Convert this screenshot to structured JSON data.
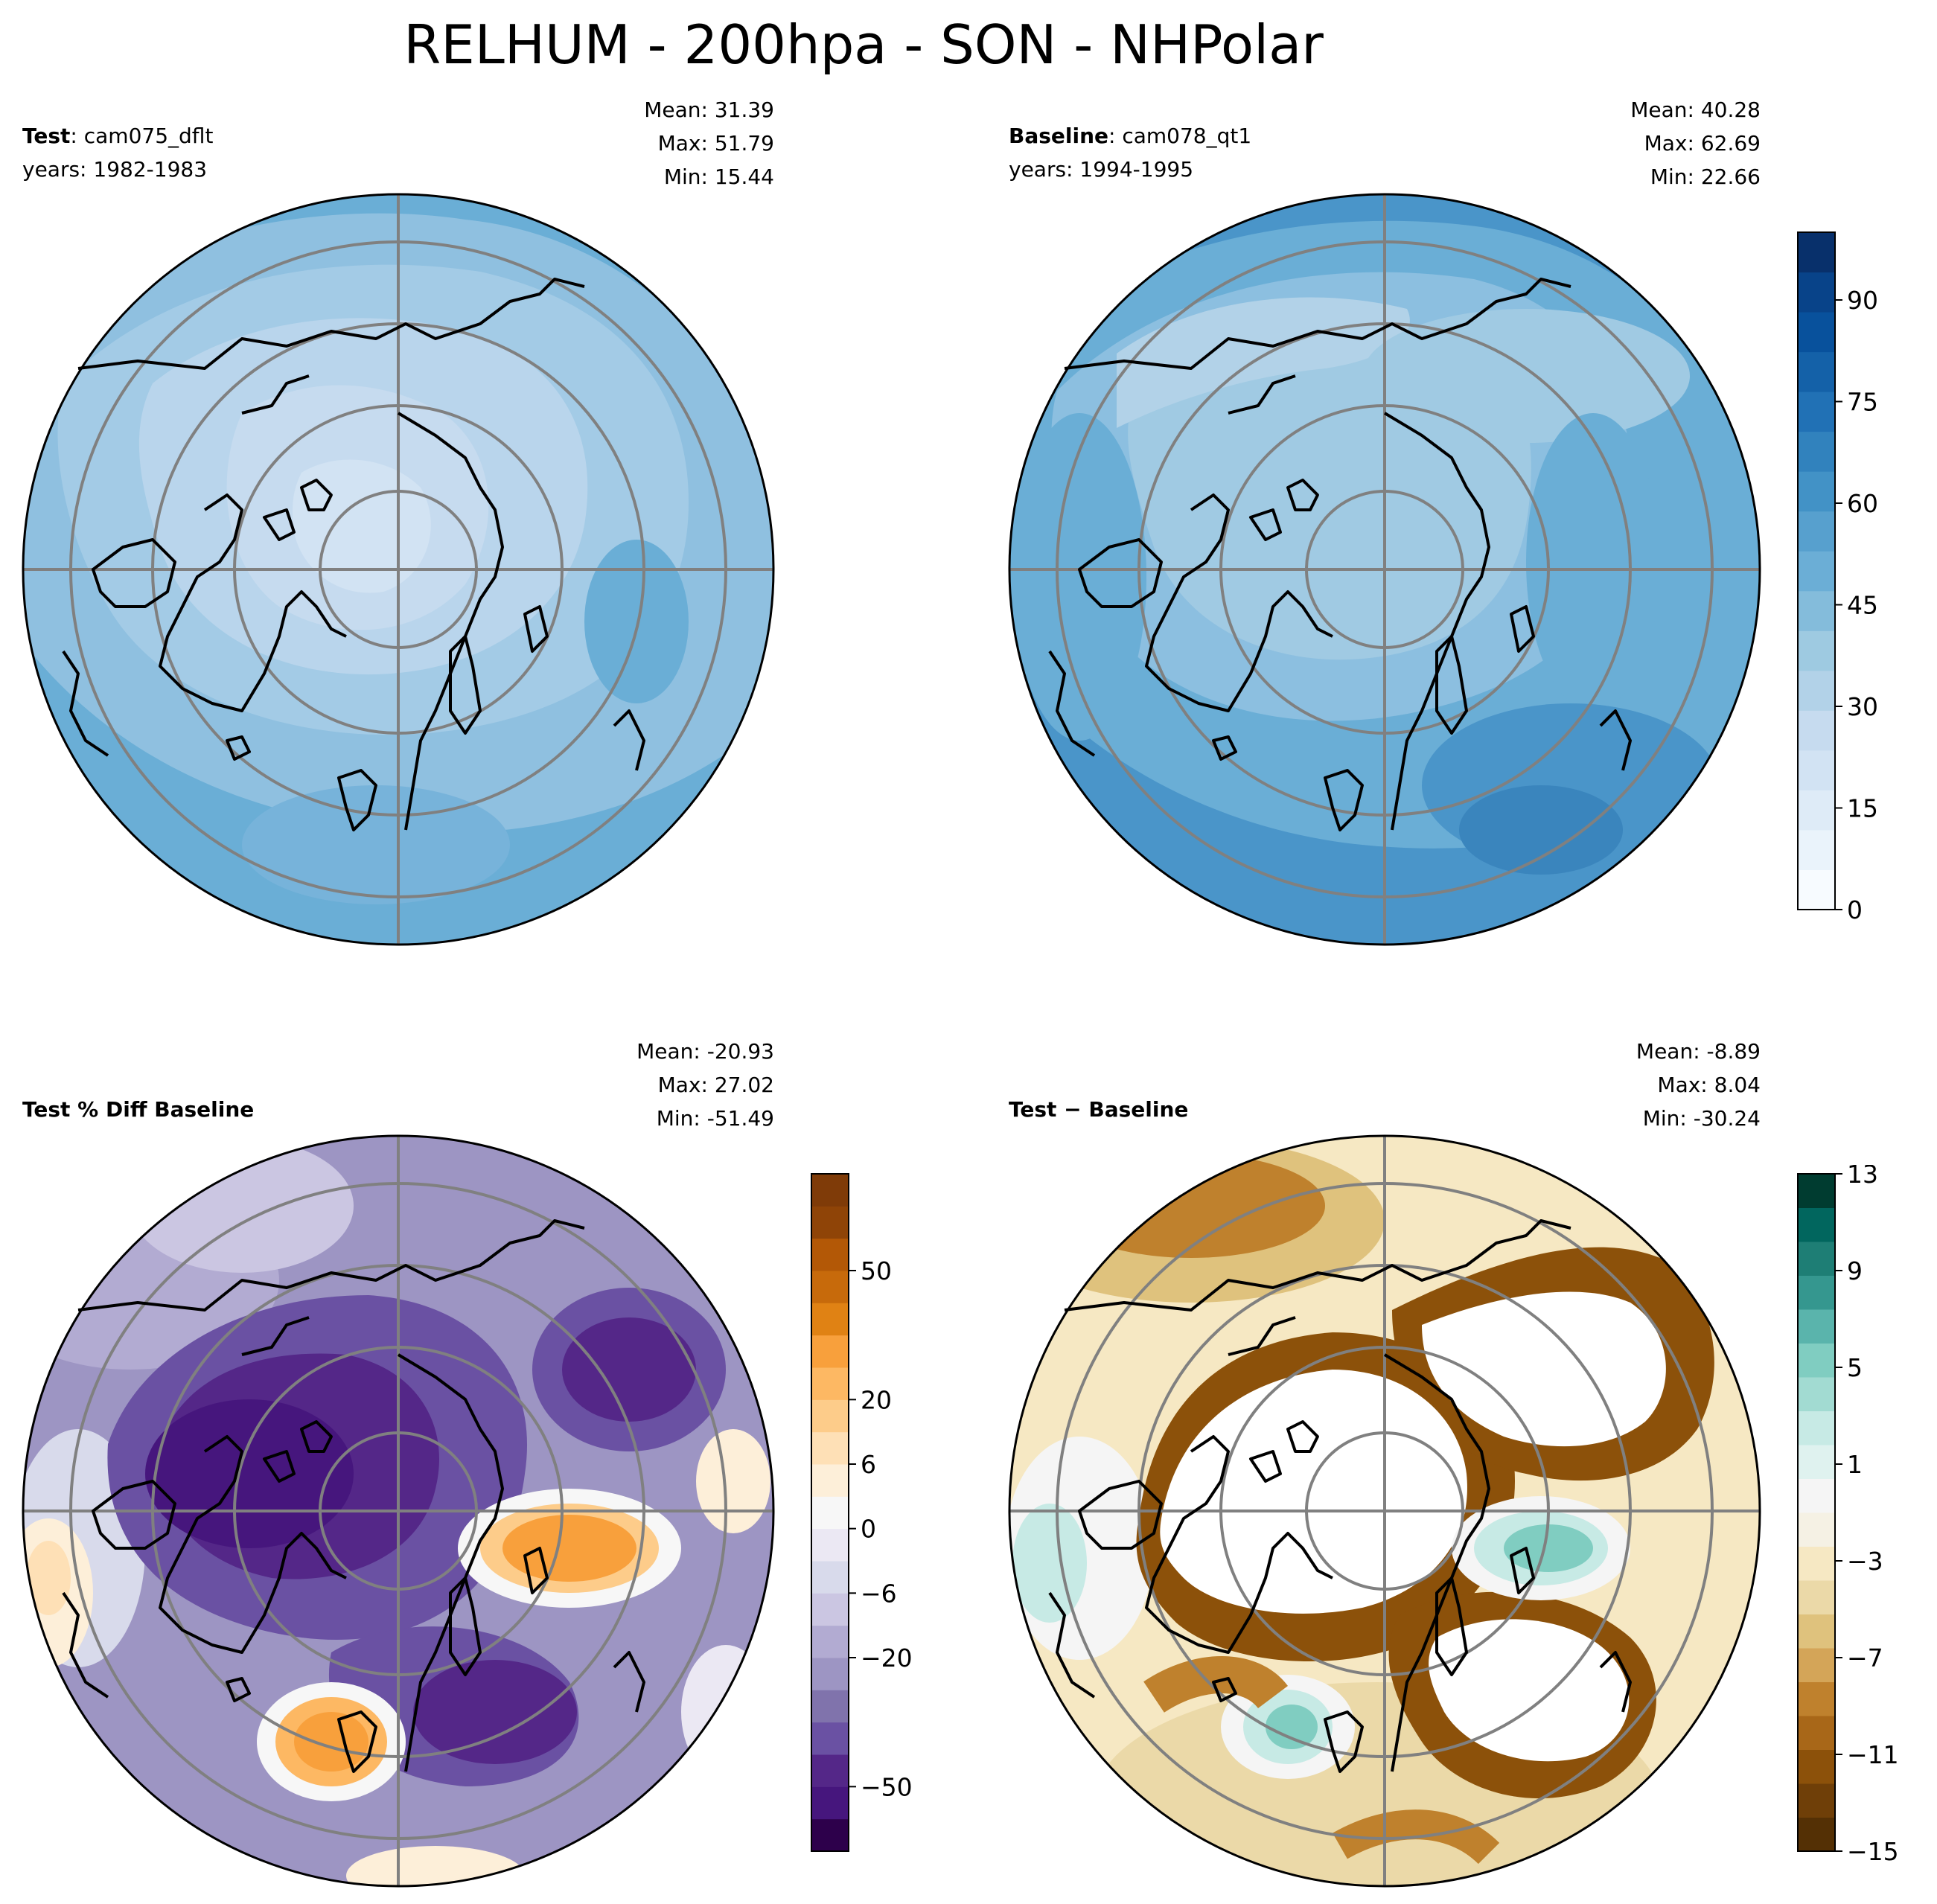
{
  "title": "RELHUM - 200hpa - SON - NHPolar",
  "panels": {
    "test": {
      "label_bold": "Test",
      "label_rest": ": cam075_dflt",
      "years": "years: 1982-1983",
      "mean": "Mean: 31.39",
      "max": "Max: 51.79",
      "min": "Min: 15.44"
    },
    "baseline": {
      "label_bold": "Baseline",
      "label_rest": ": cam078_qt1",
      "years": "years: 1994-1995",
      "mean": "Mean: 40.28",
      "max": "Max: 62.69",
      "min": "Min: 22.66"
    },
    "pctdiff": {
      "label_bold": "Test % Diff Baseline",
      "mean": "Mean: -20.93",
      "max": "Max: 27.02",
      "min": "Min: -51.49"
    },
    "diff": {
      "label_bold": "Test − Baseline",
      "mean": "Mean: -8.89",
      "max": "Max:  8.04",
      "min": "Min: -30.24"
    }
  },
  "colorbars": {
    "relhum": {
      "ticks": [
        "0",
        "15",
        "30",
        "45",
        "60",
        "75",
        "90"
      ],
      "colors": [
        "#f7fbff",
        "#eaf3fb",
        "#deebf7",
        "#d2e3f3",
        "#c6dbef",
        "#b2d2e8",
        "#9ecae1",
        "#84bcdb",
        "#6baed6",
        "#57a0ce",
        "#4292c6",
        "#3182bd",
        "#2171b5",
        "#1461a8",
        "#08519c",
        "#084389",
        "#08306b"
      ]
    },
    "pctdiff": {
      "ticks": [
        "−50",
        "−20",
        "−6",
        "0",
        "6",
        "20",
        "50"
      ],
      "colors": [
        "#2d004b",
        "#46167d",
        "#542788",
        "#6a51a3",
        "#8073ac",
        "#9d95c3",
        "#b2abd2",
        "#cbc6e2",
        "#d8daeb",
        "#ebe8f3",
        "#f7f7f7",
        "#fdefd9",
        "#fee0b6",
        "#fdcc8a",
        "#fdb863",
        "#f8a03c",
        "#e08214",
        "#c76a0b",
        "#b35806",
        "#8f4407",
        "#7f3b08"
      ]
    },
    "diff": {
      "ticks": [
        "−15",
        "−11",
        "−7",
        "−3",
        "1",
        "5",
        "9",
        "13"
      ],
      "colors": [
        "#543005",
        "#6f3f08",
        "#8c510a",
        "#a86718",
        "#bf812d",
        "#d4a558",
        "#dfc27d",
        "#ebd9a8",
        "#f6e8c3",
        "#f5f1e4",
        "#f5f5f5",
        "#dff2ef",
        "#c7eae5",
        "#a2dbd2",
        "#80cdc1",
        "#5ab4ac",
        "#35978f",
        "#1e7e75",
        "#01665e",
        "#003c30"
      ]
    }
  },
  "map_colors": {
    "test": [
      "#c6dbef",
      "#b9d5ec",
      "#a3cbe6",
      "#8fc0e0",
      "#77b3da",
      "#6aaed6"
    ],
    "baseline": [
      "#b2d2e8",
      "#a0cae3",
      "#8cbfe0",
      "#6aaed6",
      "#5aa2cf",
      "#4a95c9"
    ],
    "gridline": "#808080"
  }
}
